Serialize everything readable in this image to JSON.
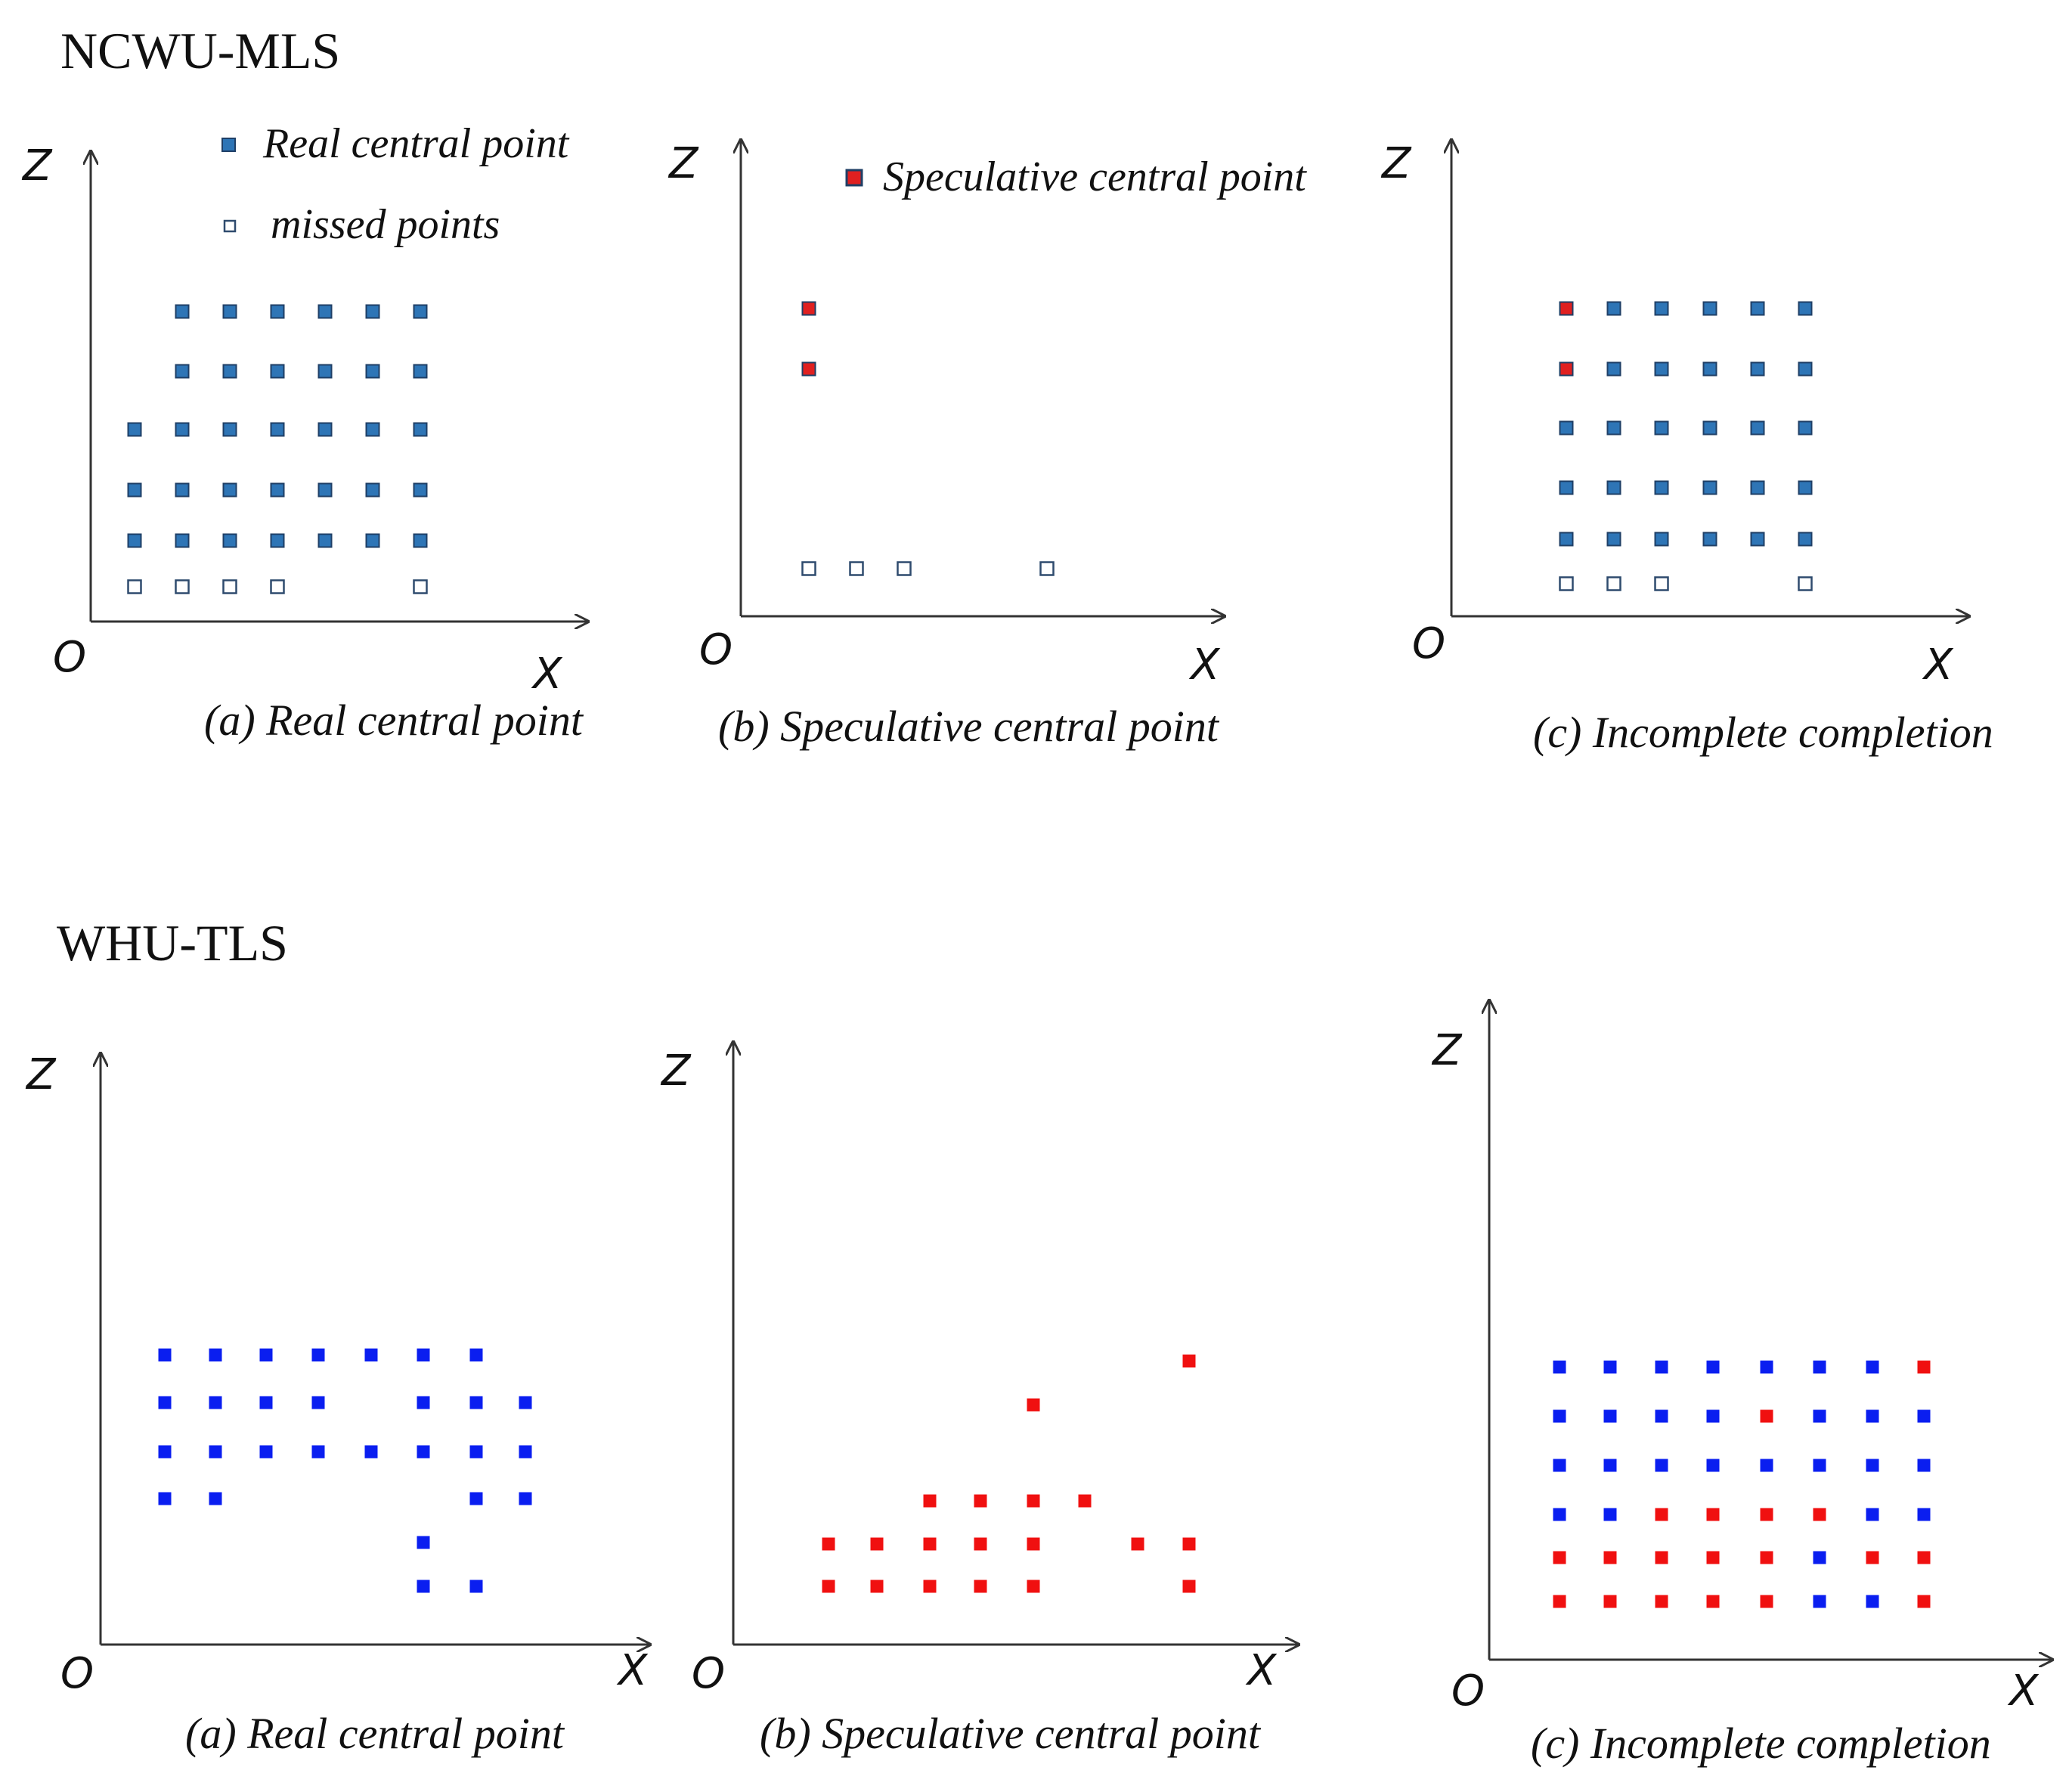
{
  "colors": {
    "real": "#2e75b6",
    "speculative": "#e02020",
    "missed_border": "#2f4b6e",
    "whu_real": "#0a1ef0",
    "whu_spec": "#f01010"
  },
  "sections": [
    {
      "title": "NCWU-MLS",
      "legend": {
        "real": "Real central point",
        "missed": "missed points",
        "speculative": "Speculative central point"
      },
      "panels": [
        {
          "caption": "(a) Real central point",
          "axis": {
            "z": "Z",
            "x": "X",
            "o": "O"
          }
        },
        {
          "caption": "(b) Speculative central point",
          "axis": {
            "z": "Z",
            "x": "X",
            "o": "O"
          }
        },
        {
          "caption": "(c) Incomplete completion",
          "axis": {
            "z": "Z",
            "x": "X",
            "o": "O"
          }
        }
      ]
    },
    {
      "title": "WHU-TLS",
      "panels": [
        {
          "caption": "(a) Real central point",
          "axis": {
            "z": "Z",
            "x": "X",
            "o": "O"
          }
        },
        {
          "caption": "(b) Speculative central point",
          "axis": {
            "z": "Z",
            "x": "X",
            "o": "O"
          }
        },
        {
          "caption": "(c) Incomplete completion",
          "axis": {
            "z": "Z",
            "x": "X",
            "o": "O"
          }
        }
      ]
    }
  ]
}
